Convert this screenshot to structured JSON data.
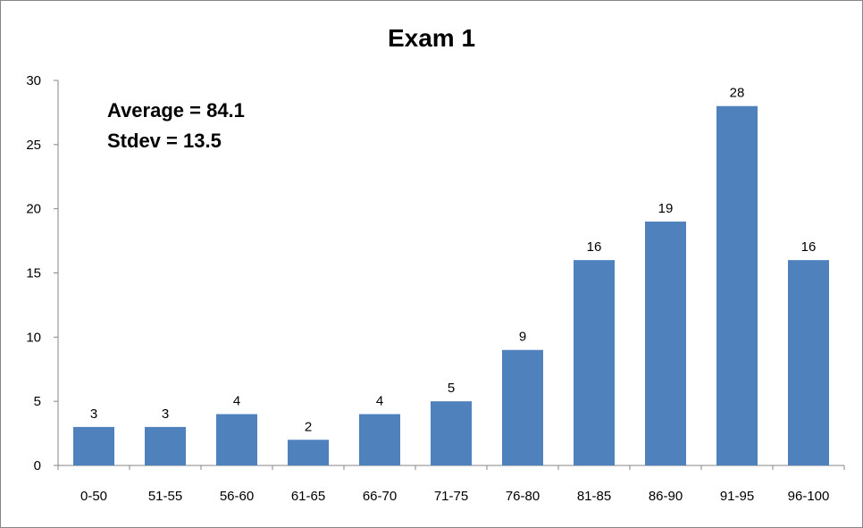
{
  "chart_data": {
    "type": "bar",
    "title": "Exam 1",
    "xlabel": "",
    "ylabel": "",
    "categories": [
      "0-50",
      "51-55",
      "56-60",
      "61-65",
      "66-70",
      "71-75",
      "76-80",
      "81-85",
      "86-90",
      "91-95",
      "96-100"
    ],
    "values": [
      3,
      3,
      4,
      2,
      4,
      5,
      9,
      16,
      19,
      28,
      16
    ],
    "ylim": [
      0,
      30
    ],
    "yticks": [
      "0",
      "5",
      "10",
      "15",
      "20",
      "25",
      "30"
    ],
    "grid": false,
    "legend": "none",
    "data_labels": true,
    "bar_color": "#4F81BD",
    "annotations": [
      "Average = 84.1",
      "Stdev = 13.5"
    ]
  }
}
